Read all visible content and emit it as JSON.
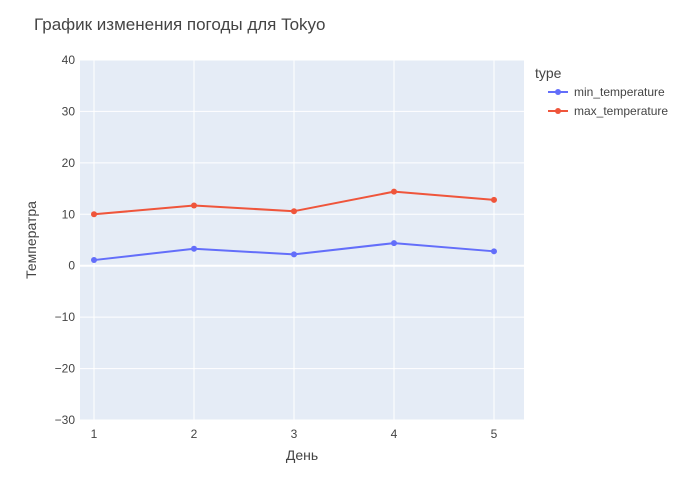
{
  "chart_data": {
    "type": "line",
    "title": "График изменения погоды для Tokyo",
    "xlabel": "День",
    "ylabel": "Температра",
    "x": [
      1,
      2,
      3,
      4,
      5
    ],
    "xlim": [
      0.86,
      5.3
    ],
    "ylim": [
      -30,
      40
    ],
    "yticks": [
      -30,
      -20,
      -10,
      0,
      10,
      20,
      30,
      40
    ],
    "grid": true,
    "plot_background": "#e5ecf6",
    "legend": {
      "title": "type",
      "position": "top-right"
    },
    "series": [
      {
        "name": "min_temperature",
        "color": "#636efa",
        "values": [
          1.1,
          3.3,
          2.2,
          4.4,
          2.8
        ]
      },
      {
        "name": "max_temperature",
        "color": "#ef553b",
        "values": [
          10.0,
          11.7,
          10.6,
          14.4,
          12.8
        ]
      }
    ]
  }
}
